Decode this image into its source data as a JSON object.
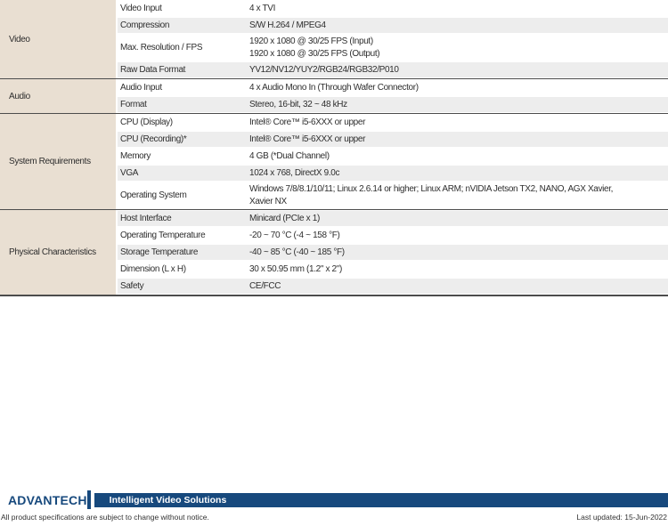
{
  "colors": {
    "category_bg": "#e9dfd2",
    "stripe_bg": "#ededed",
    "separator_line": "#4c4c4c",
    "brand_blue": "#17497d",
    "text": "#2e2e2e"
  },
  "spec_table": {
    "sections": [
      {
        "category": "Video",
        "rows": [
          {
            "label": "Video Input",
            "value": [
              "4 x TVI"
            ]
          },
          {
            "label": "Compression",
            "value": [
              "S/W H.264 / MPEG4"
            ]
          },
          {
            "label": "Max. Resolution / FPS",
            "value": [
              "1920 x 1080 @ 30/25 FPS (Input)",
              "1920 x 1080 @ 30/25 FPS (Output)"
            ]
          },
          {
            "label": "Raw Data Format",
            "value": [
              "YV12/NV12/YUY2/RGB24/RGB32/P010"
            ]
          }
        ]
      },
      {
        "category": "Audio",
        "rows": [
          {
            "label": "Audio Input",
            "value": [
              "4 x Audio Mono In (Through Wafer Connector)"
            ]
          },
          {
            "label": "Format",
            "value": [
              "Stereo, 16-bit, 32 ~ 48 kHz"
            ]
          }
        ]
      },
      {
        "category": "System Requirements",
        "rows": [
          {
            "label": "CPU (Display)",
            "value": [
              "Intel® Core™ i5-6XXX or upper"
            ]
          },
          {
            "label": "CPU (Recording)*",
            "value": [
              "Intel® Core™ i5-6XXX or upper"
            ]
          },
          {
            "label": "Memory",
            "value": [
              "4 GB (*Dual Channel)"
            ]
          },
          {
            "label": "VGA",
            "value": [
              "1024 x 768, DirectX 9.0c"
            ]
          },
          {
            "label": "Operating System",
            "value": [
              "Windows 7/8/8.1/10/11; Linux 2.6.14 or higher; Linux ARM; nVIDIA Jetson TX2, NANO, AGX Xavier,",
              "Xavier NX"
            ]
          }
        ]
      },
      {
        "category": "Physical Characteristics",
        "rows": [
          {
            "label": "Host Interface",
            "value": [
              "Minicard (PCIe x 1)"
            ]
          },
          {
            "label": "Operating Temperature",
            "value": [
              "-20 ~ 70 °C (-4 ~ 158 °F)"
            ]
          },
          {
            "label": "Storage Temperature",
            "value": [
              "-40 ~ 85 °C (-40 ~ 185 °F)"
            ]
          },
          {
            "label": "Dimension (L x H)",
            "value": [
              "30 x 50.95 mm (1.2\" x 2\")"
            ]
          },
          {
            "label": "Safety",
            "value": [
              "CE/FCC"
            ]
          }
        ]
      }
    ]
  },
  "footer": {
    "logo_text": "ADVANTECH",
    "banner_title": "Intelligent Video Solutions",
    "disclaimer": "All product specifications are subject to change without notice.",
    "last_updated": "Last updated: 15-Jun-2022"
  }
}
